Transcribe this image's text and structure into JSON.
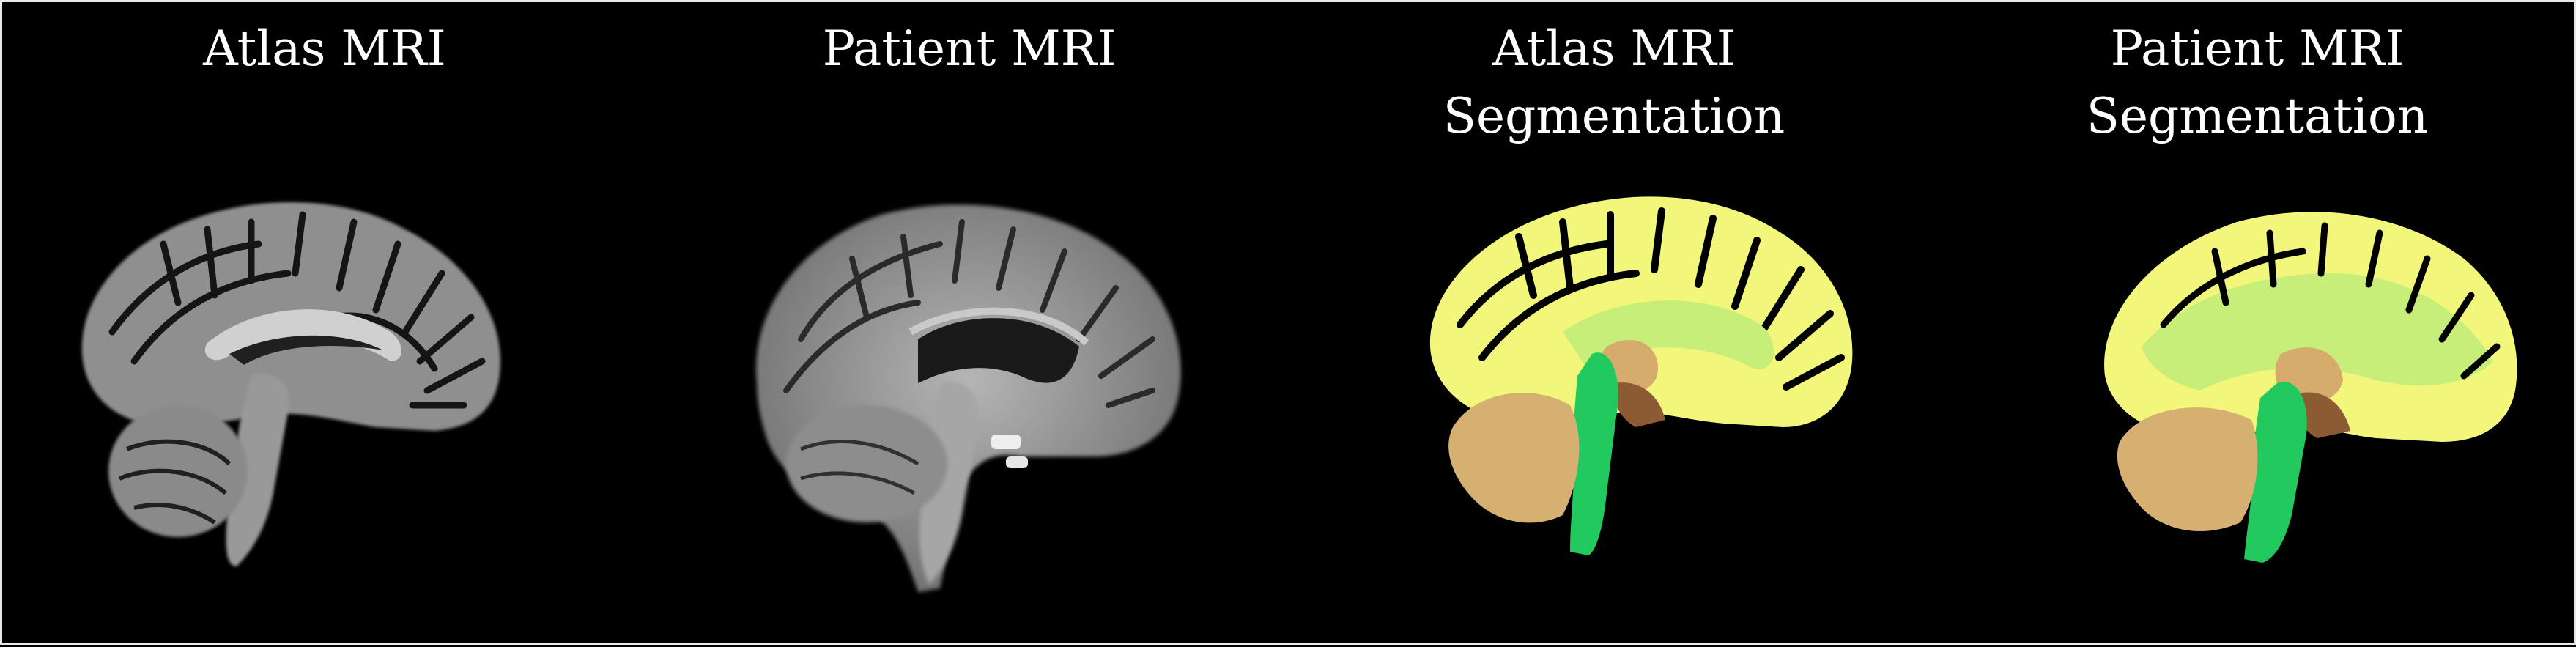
{
  "panels": [
    {
      "title": "Atlas MRI",
      "kind": "mri-scan"
    },
    {
      "title": "Patient MRI",
      "kind": "mri-scan"
    },
    {
      "title": "Atlas MRI\nSegmentation",
      "kind": "segmentation-map"
    },
    {
      "title": "Patient MRI\nSegmentation",
      "kind": "segmentation-map"
    }
  ],
  "colors": {
    "background": "#000000",
    "border": "#e9e9e9",
    "title_text": "#ffffff",
    "seg_cortex": "#f2f77b",
    "seg_white_matter": "#c8ee7a",
    "seg_thalamus": "#d6ac6c",
    "seg_midbrain": "#8c5a33",
    "seg_brainstem": "#22c95e",
    "seg_cerebellum": "#d6b070"
  }
}
